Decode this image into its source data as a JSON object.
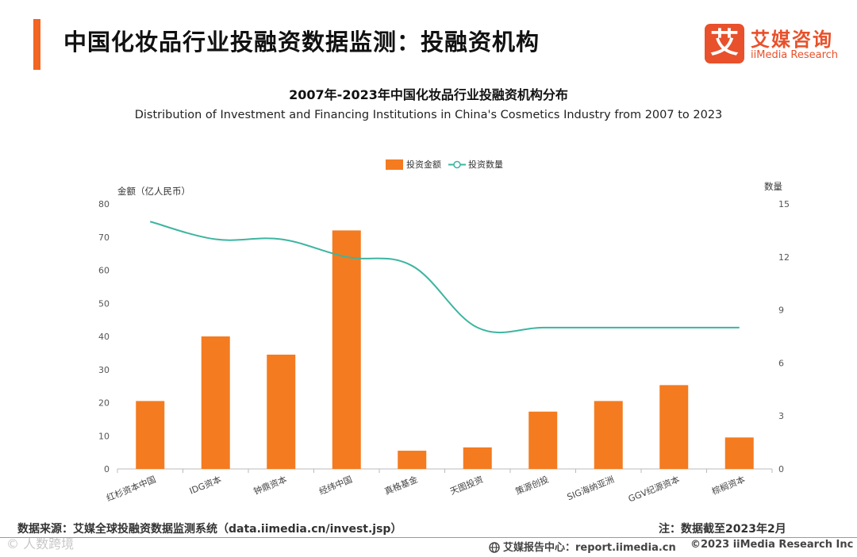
{
  "header": {
    "title": "中国化妆品行业投融资数据监测：投融资机构",
    "accent_color": "#f26522"
  },
  "logo": {
    "mark": "艾",
    "name_cn": "艾媒咨询",
    "name_en": "iiMedia Research",
    "brand_color": "#e8512b"
  },
  "chart_data": {
    "type": "bar+line",
    "title": "2007年-2023年中国化妆品行业投融资机构分布",
    "subtitle": "Distribution of Investment and Financing Institutions in China's Cosmetics Industry from 2007 to 2023",
    "categories": [
      "红杉资本中国",
      "IDG资本",
      "钟鼎资本",
      "经纬中国",
      "真格基金",
      "天图投资",
      "策源创投",
      "SIG海纳亚洲",
      "GGV纪源资本",
      "棕榈资本"
    ],
    "series": [
      {
        "name": "投资金额",
        "type": "bar",
        "axis": "left",
        "color": "#f47b20",
        "values": [
          20.5,
          40,
          34.5,
          72,
          5.5,
          6.5,
          17.3,
          20.5,
          25.3,
          9.5
        ]
      },
      {
        "name": "投资数量",
        "type": "line",
        "axis": "right",
        "color": "#3db5a0",
        "values": [
          14,
          13,
          13,
          12,
          11.5,
          8,
          8,
          8,
          8,
          8
        ]
      }
    ],
    "ylabel_left": "金额（亿人民币）",
    "ylabel_right": "数量",
    "ylim_left": [
      0,
      80
    ],
    "yticks_left": [
      0,
      10,
      20,
      30,
      40,
      50,
      60,
      70,
      80
    ],
    "ylim_right": [
      0,
      15
    ],
    "yticks_right": [
      0,
      3,
      6,
      9,
      12,
      15
    ],
    "legend_position": "top-center",
    "grid": false
  },
  "footer": {
    "source": "数据来源：艾媒全球投融资数据监测系统（data.iimedia.cn/invest.jsp）",
    "note": "注：数据截至2023年2月",
    "watermark": "© 人数跨境",
    "center": "艾媒报告中心：report.iimedia.cn",
    "copyright": "©2023  iiMedia Research  Inc"
  }
}
